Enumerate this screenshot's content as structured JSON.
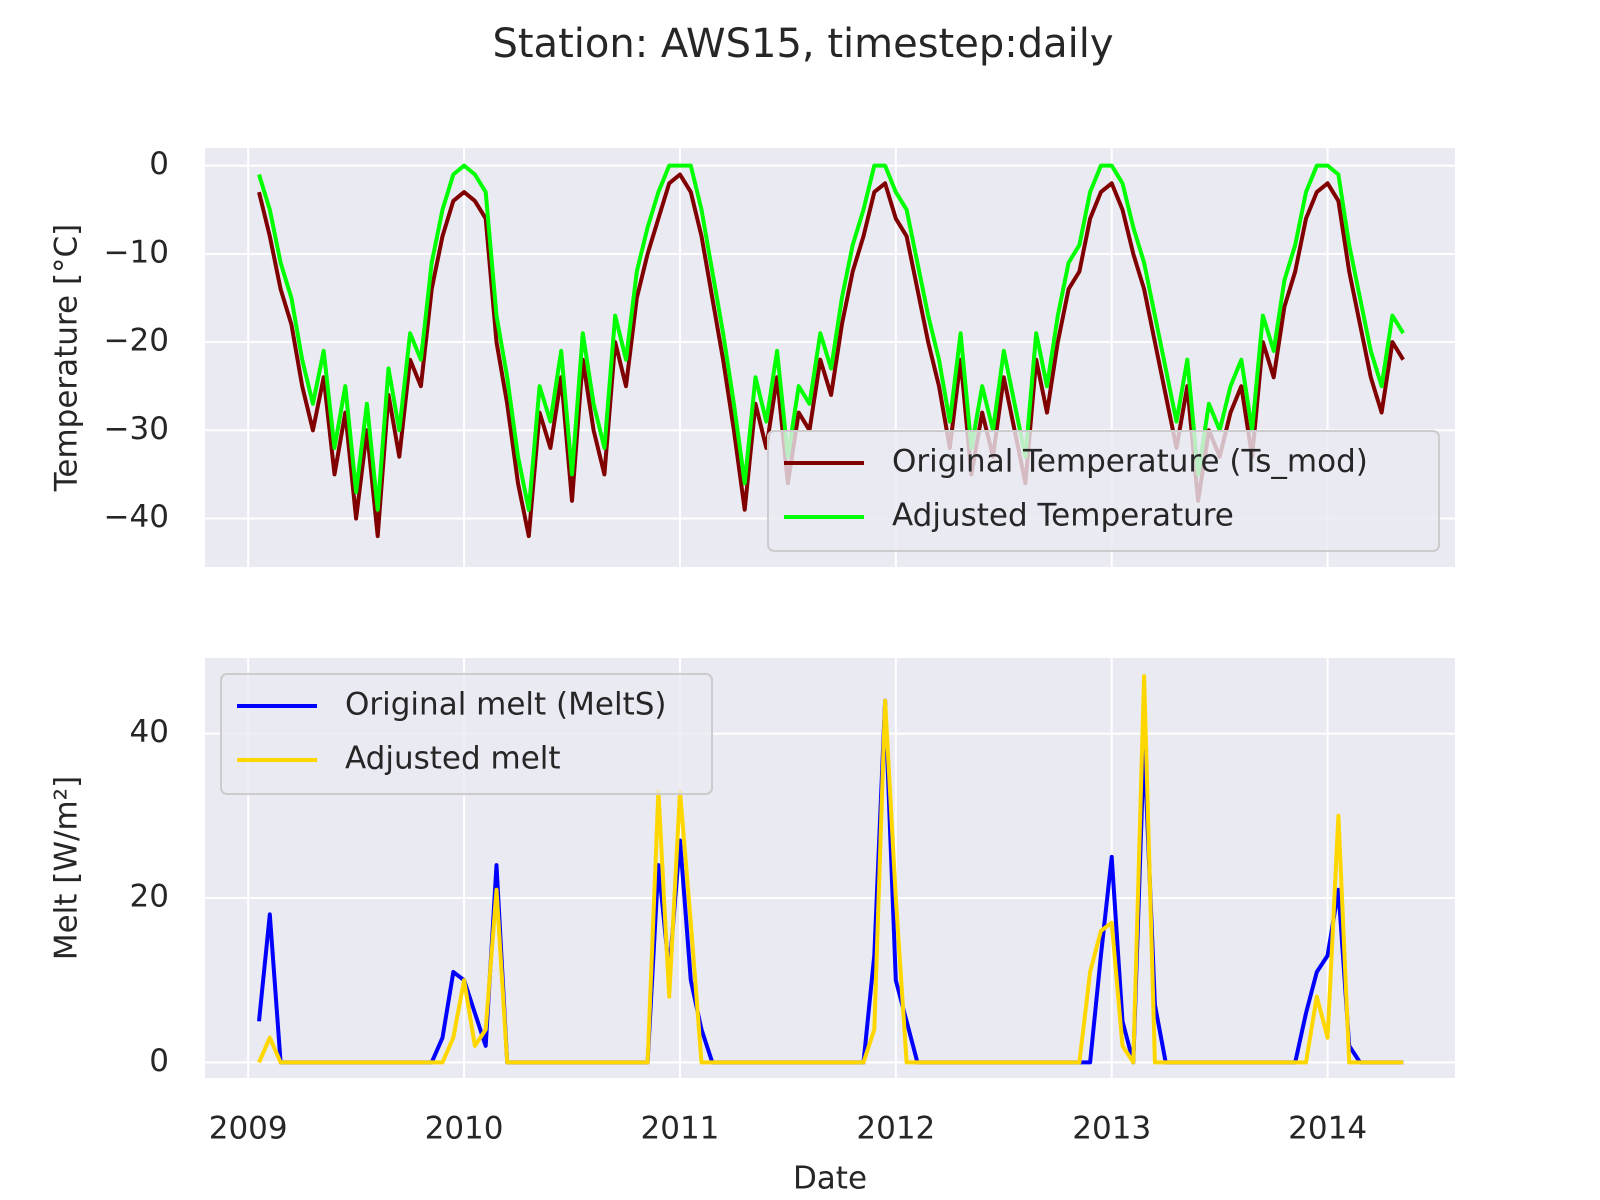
{
  "title": "Station: AWS15, timestep:daily",
  "chart_data": [
    {
      "type": "line",
      "ylabel": "Temperature [°C]",
      "x": [
        2009.05,
        2009.1,
        2009.15,
        2009.2,
        2009.25,
        2009.3,
        2009.35,
        2009.4,
        2009.45,
        2009.5,
        2009.55,
        2009.6,
        2009.65,
        2009.7,
        2009.75,
        2009.8,
        2009.85,
        2009.9,
        2009.95,
        2010.0,
        2010.05,
        2010.1,
        2010.15,
        2010.2,
        2010.25,
        2010.3,
        2010.35,
        2010.4,
        2010.45,
        2010.5,
        2010.55,
        2010.6,
        2010.65,
        2010.7,
        2010.75,
        2010.8,
        2010.85,
        2010.9,
        2010.95,
        2011.0,
        2011.05,
        2011.1,
        2011.15,
        2011.2,
        2011.25,
        2011.3,
        2011.35,
        2011.4,
        2011.45,
        2011.5,
        2011.55,
        2011.6,
        2011.65,
        2011.7,
        2011.75,
        2011.8,
        2011.85,
        2011.9,
        2011.95,
        2012.0,
        2012.05,
        2012.1,
        2012.15,
        2012.2,
        2012.25,
        2012.3,
        2012.35,
        2012.4,
        2012.45,
        2012.5,
        2012.55,
        2012.6,
        2012.65,
        2012.7,
        2012.75,
        2012.8,
        2012.85,
        2012.9,
        2012.95,
        2013.0,
        2013.05,
        2013.1,
        2013.15,
        2013.2,
        2013.25,
        2013.3,
        2013.35,
        2013.4,
        2013.45,
        2013.5,
        2013.55,
        2013.6,
        2013.65,
        2013.7,
        2013.75,
        2013.8,
        2013.85,
        2013.9,
        2013.95,
        2014.0,
        2014.05,
        2014.1,
        2014.15,
        2014.2,
        2014.25,
        2014.3,
        2014.35
      ],
      "series": [
        {
          "name": "Original Temperature (Ts_mod)",
          "color": "#800000",
          "values": [
            -3,
            -8,
            -14,
            -18,
            -25,
            -30,
            -24,
            -35,
            -28,
            -40,
            -30,
            -42,
            -26,
            -33,
            -22,
            -25,
            -14,
            -8,
            -4,
            -3,
            -4,
            -6,
            -20,
            -27,
            -36,
            -42,
            -28,
            -32,
            -24,
            -38,
            -22,
            -30,
            -35,
            -20,
            -25,
            -15,
            -10,
            -6,
            -2,
            -1,
            -3,
            -8,
            -15,
            -22,
            -30,
            -39,
            -27,
            -32,
            -24,
            -36,
            -28,
            -30,
            -22,
            -26,
            -18,
            -12,
            -8,
            -3,
            -2,
            -6,
            -8,
            -14,
            -20,
            -25,
            -32,
            -22,
            -35,
            -28,
            -33,
            -24,
            -30,
            -36,
            -22,
            -28,
            -20,
            -14,
            -12,
            -6,
            -3,
            -2,
            -5,
            -10,
            -14,
            -20,
            -26,
            -32,
            -25,
            -38,
            -30,
            -33,
            -28,
            -25,
            -33,
            -20,
            -24,
            -16,
            -12,
            -6,
            -3,
            -2,
            -4,
            -12,
            -18,
            -24,
            -28,
            -20,
            -22
          ]
        },
        {
          "name": "Adjusted Temperature",
          "color": "#00ff00",
          "values": [
            -1,
            -5,
            -11,
            -15,
            -22,
            -27,
            -21,
            -32,
            -25,
            -37,
            -27,
            -39,
            -23,
            -30,
            -19,
            -22,
            -11,
            -5,
            -1,
            0,
            -1,
            -3,
            -17,
            -24,
            -33,
            -39,
            -25,
            -29,
            -21,
            -35,
            -19,
            -27,
            -32,
            -17,
            -22,
            -12,
            -7,
            -3,
            0,
            0,
            0,
            -5,
            -12,
            -19,
            -27,
            -36,
            -24,
            -29,
            -21,
            -33,
            -25,
            -27,
            -19,
            -23,
            -15,
            -9,
            -5,
            0,
            0,
            -3,
            -5,
            -11,
            -17,
            -22,
            -29,
            -19,
            -32,
            -25,
            -30,
            -21,
            -27,
            -33,
            -19,
            -25,
            -17,
            -11,
            -9,
            -3,
            0,
            0,
            -2,
            -7,
            -11,
            -17,
            -23,
            -29,
            -22,
            -35,
            -27,
            -30,
            -25,
            -22,
            -30,
            -17,
            -21,
            -13,
            -9,
            -3,
            0,
            0,
            -1,
            -9,
            -15,
            -21,
            -25,
            -17,
            -19
          ]
        }
      ],
      "xlim": [
        2008.8,
        2014.59
      ],
      "xticks": [
        2009,
        2010,
        2011,
        2012,
        2013,
        2014
      ],
      "ylim": [
        -45.5,
        2
      ],
      "yticks": [
        {
          "value": -40,
          "label": "−40"
        },
        {
          "value": -30,
          "label": "−30"
        },
        {
          "value": -20,
          "label": "−20"
        },
        {
          "value": -10,
          "label": "−10"
        },
        0
      ],
      "grid": true,
      "legend": "lower right"
    },
    {
      "type": "line",
      "ylabel": "Melt [W/m²]",
      "xlabel": "Date",
      "x": [
        2009.05,
        2009.1,
        2009.15,
        2009.2,
        2009.25,
        2009.3,
        2009.35,
        2009.4,
        2009.45,
        2009.5,
        2009.55,
        2009.6,
        2009.65,
        2009.7,
        2009.75,
        2009.8,
        2009.85,
        2009.9,
        2009.95,
        2010.0,
        2010.05,
        2010.1,
        2010.15,
        2010.2,
        2010.25,
        2010.3,
        2010.35,
        2010.4,
        2010.45,
        2010.5,
        2010.55,
        2010.6,
        2010.65,
        2010.7,
        2010.75,
        2010.8,
        2010.85,
        2010.9,
        2010.95,
        2011.0,
        2011.05,
        2011.1,
        2011.15,
        2011.2,
        2011.25,
        2011.3,
        2011.35,
        2011.4,
        2011.45,
        2011.5,
        2011.55,
        2011.6,
        2011.65,
        2011.7,
        2011.75,
        2011.8,
        2011.85,
        2011.9,
        2011.95,
        2012.0,
        2012.05,
        2012.1,
        2012.15,
        2012.2,
        2012.25,
        2012.3,
        2012.35,
        2012.4,
        2012.45,
        2012.5,
        2012.55,
        2012.6,
        2012.65,
        2012.7,
        2012.75,
        2012.8,
        2012.85,
        2012.9,
        2012.95,
        2013.0,
        2013.05,
        2013.1,
        2013.15,
        2013.2,
        2013.25,
        2013.3,
        2013.35,
        2013.4,
        2013.45,
        2013.5,
        2013.55,
        2013.6,
        2013.65,
        2013.7,
        2013.75,
        2013.8,
        2013.85,
        2013.9,
        2013.95,
        2014.0,
        2014.05,
        2014.1,
        2014.15,
        2014.2,
        2014.25,
        2014.3,
        2014.35
      ],
      "series": [
        {
          "name": "Original melt (MeltS)",
          "color": "#0000ff",
          "values": [
            5,
            18,
            0,
            0,
            0,
            0,
            0,
            0,
            0,
            0,
            0,
            0,
            0,
            0,
            0,
            0,
            0,
            3,
            11,
            10,
            6,
            2,
            24,
            0,
            0,
            0,
            0,
            0,
            0,
            0,
            0,
            0,
            0,
            0,
            0,
            0,
            0,
            24,
            11,
            27,
            10,
            4,
            0,
            0,
            0,
            0,
            0,
            0,
            0,
            0,
            0,
            0,
            0,
            0,
            0,
            0,
            0,
            13,
            44,
            10,
            5,
            0,
            0,
            0,
            0,
            0,
            0,
            0,
            0,
            0,
            0,
            0,
            0,
            0,
            0,
            0,
            0,
            0,
            13,
            25,
            5,
            0,
            39,
            7,
            0,
            0,
            0,
            0,
            0,
            0,
            0,
            0,
            0,
            0,
            0,
            0,
            0,
            6,
            11,
            13,
            21,
            2,
            0,
            0,
            0,
            0,
            0
          ]
        },
        {
          "name": "Adjusted melt",
          "color": "#ffd700",
          "values": [
            0,
            3,
            0,
            0,
            0,
            0,
            0,
            0,
            0,
            0,
            0,
            0,
            0,
            0,
            0,
            0,
            0,
            0,
            3,
            10,
            2,
            4,
            21,
            0,
            0,
            0,
            0,
            0,
            0,
            0,
            0,
            0,
            0,
            0,
            0,
            0,
            0,
            33,
            8,
            33,
            17,
            0,
            0,
            0,
            0,
            0,
            0,
            0,
            0,
            0,
            0,
            0,
            0,
            0,
            0,
            0,
            0,
            4,
            44,
            20,
            0,
            0,
            0,
            0,
            0,
            0,
            0,
            0,
            0,
            0,
            0,
            0,
            0,
            0,
            0,
            0,
            0,
            11,
            16,
            17,
            2,
            0,
            47,
            0,
            0,
            0,
            0,
            0,
            0,
            0,
            0,
            0,
            0,
            0,
            0,
            0,
            0,
            0,
            8,
            3,
            30,
            0,
            0,
            0,
            0,
            0,
            0
          ]
        }
      ],
      "xlim": [
        2008.8,
        2014.59
      ],
      "xticks": [
        2009,
        2010,
        2011,
        2012,
        2013,
        2014
      ],
      "ylim": [
        -1.9,
        49.2
      ],
      "yticks": [
        0,
        20,
        40
      ],
      "grid": true,
      "legend": "upper left"
    }
  ]
}
